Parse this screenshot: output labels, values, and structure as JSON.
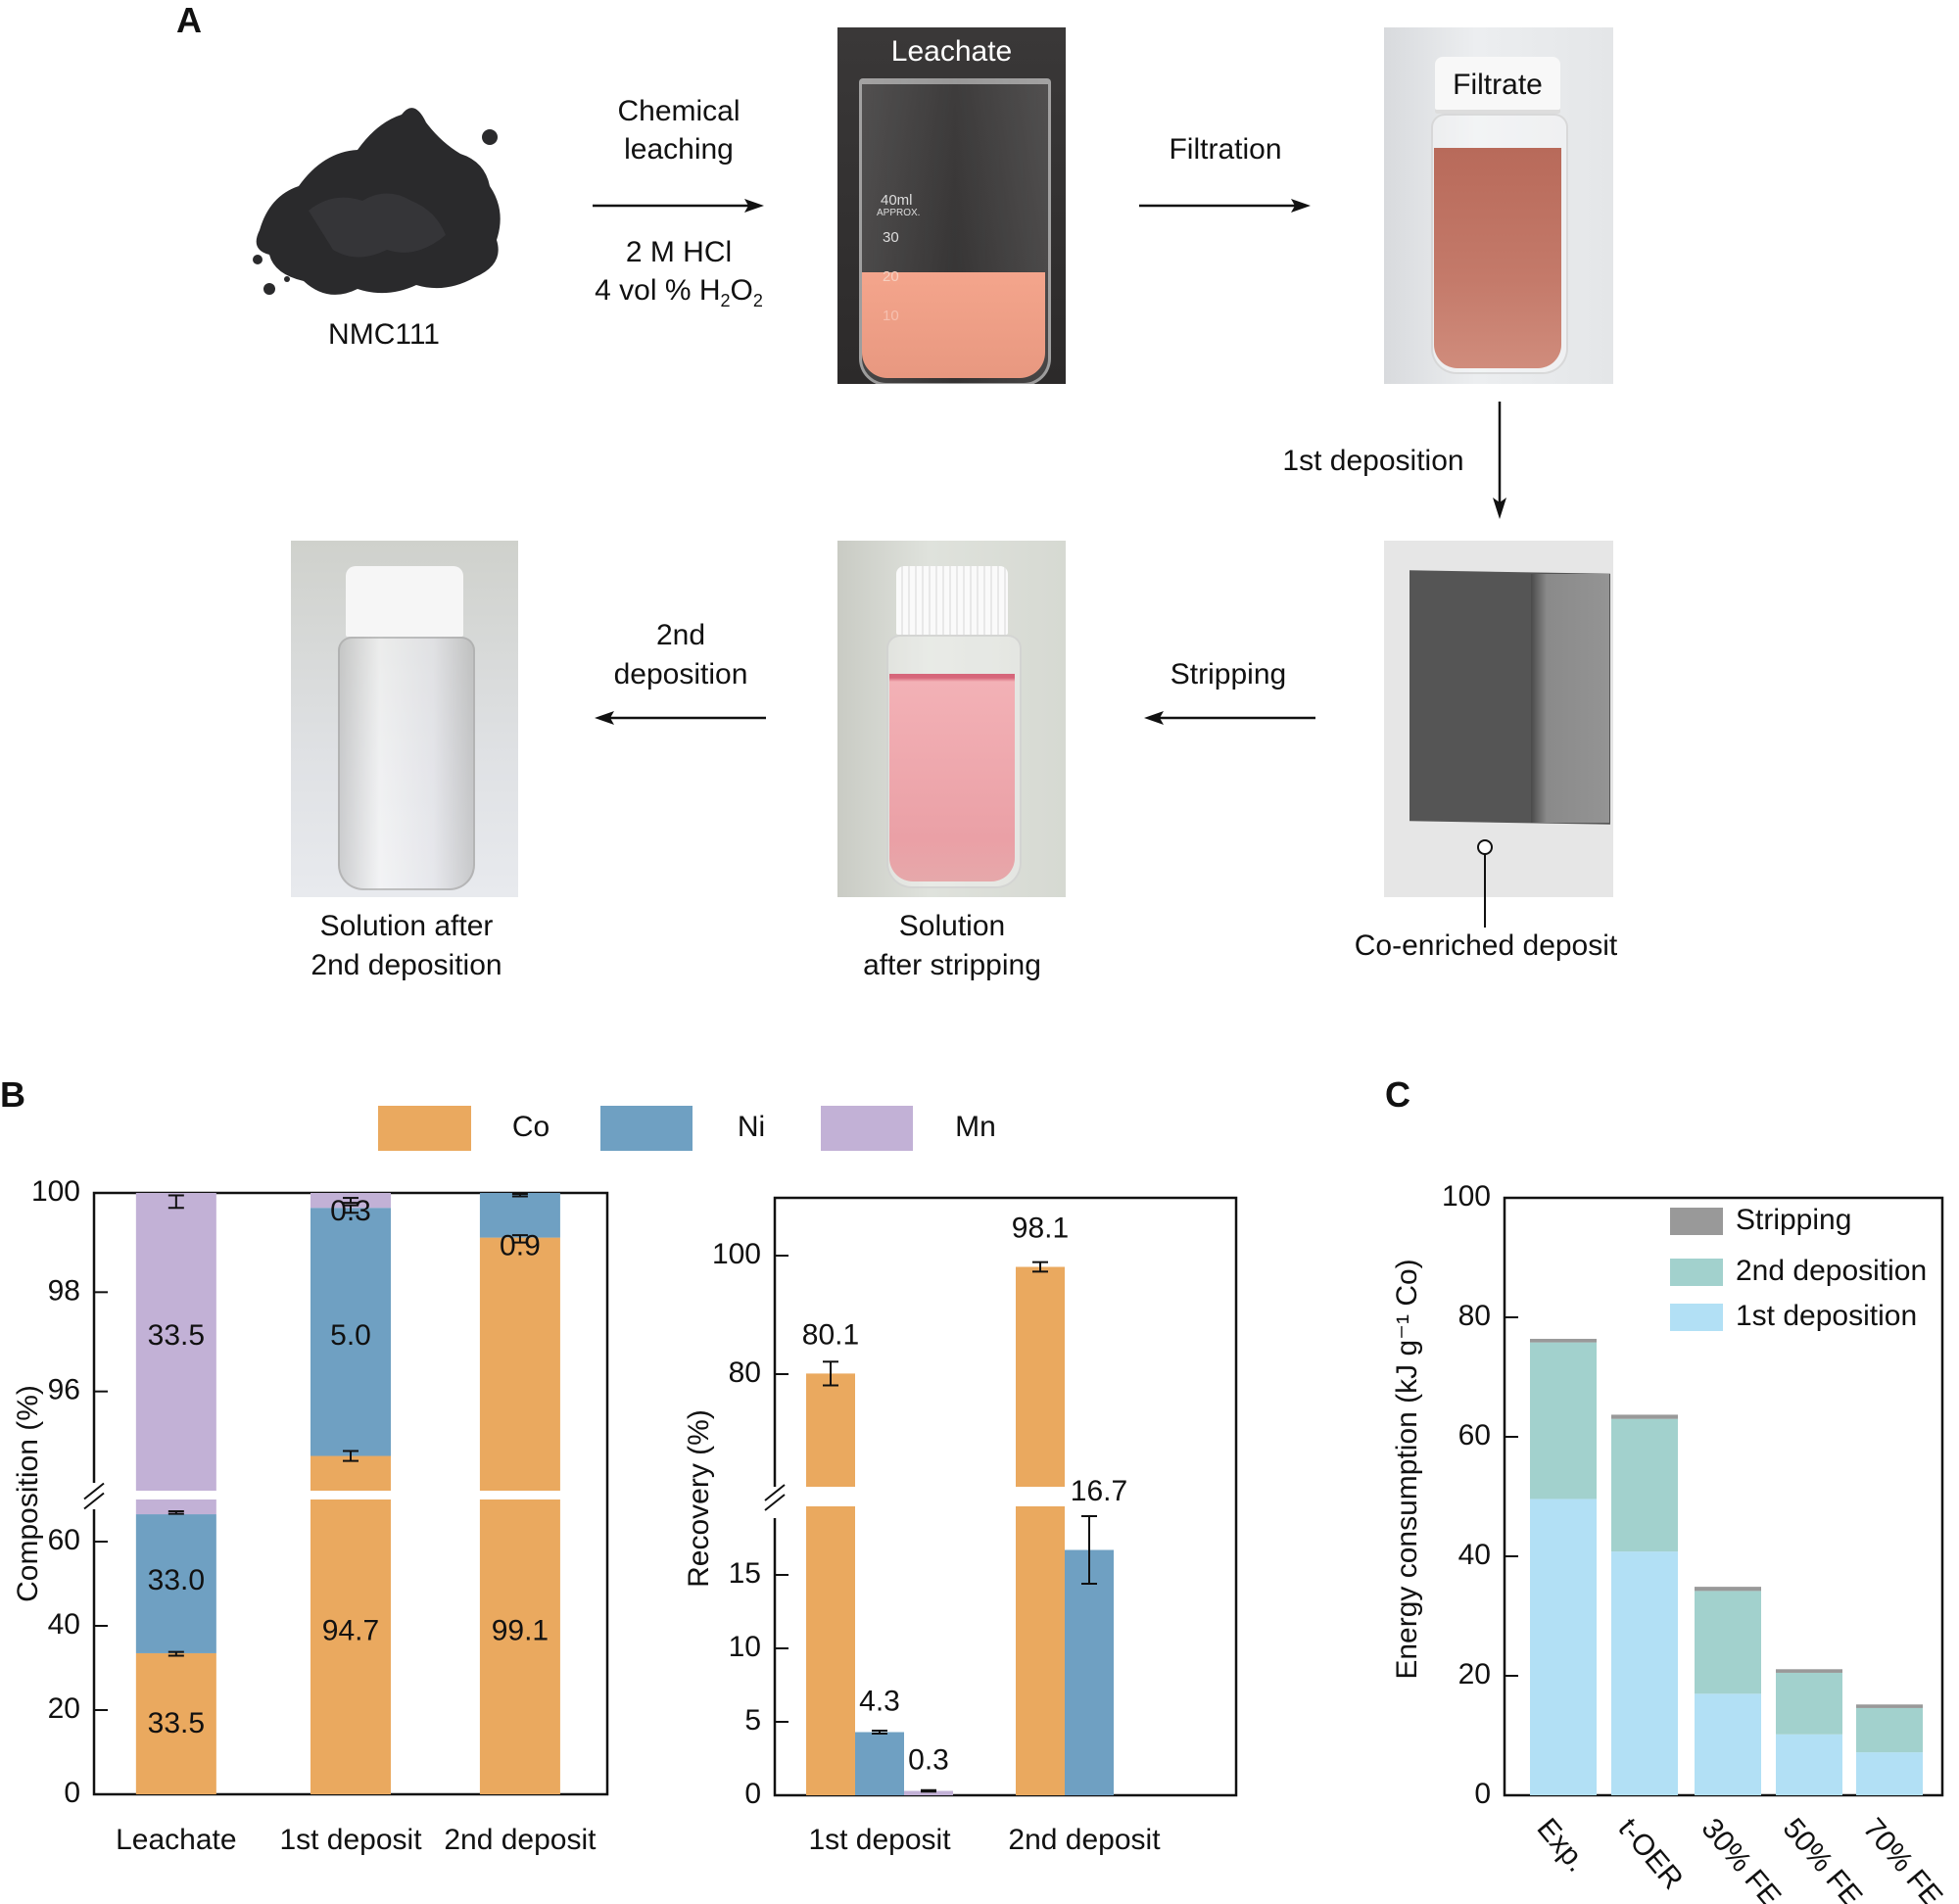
{
  "panels": {
    "a": "A",
    "b": "B",
    "c": "C"
  },
  "process": {
    "nmc": {
      "label": "NMC111"
    },
    "step1": {
      "line1": "Chemical",
      "line2": "leaching",
      "cond1": "2 M HCl",
      "cond2_prefix": "4 vol % H",
      "cond2_sub1": "2",
      "cond2_mid": "O",
      "cond2_sub2": "2"
    },
    "leachate": {
      "label": "Leachate",
      "marks": [
        "40ml",
        "APPROX.",
        "30",
        "20",
        "10"
      ]
    },
    "step2": {
      "label": "Filtration"
    },
    "filtrate": {
      "label": "Filtrate"
    },
    "step3": {
      "label": "1st deposition"
    },
    "deposit": {
      "label": "Co-enriched deposit"
    },
    "step4": {
      "label": "Stripping"
    },
    "after_strip": {
      "line1": "Solution",
      "line2": "after stripping"
    },
    "step5": {
      "line1": "2nd",
      "line2": "deposition"
    },
    "after_second": {
      "line1": "Solution after",
      "line2": "2nd deposition"
    }
  },
  "colors": {
    "co": "#EAA95F",
    "ni": "#6FA0C2",
    "mn": "#C2B1D6",
    "stripping": "#999999",
    "dep2": "#A2D1CD",
    "dep1": "#B2E0F5"
  },
  "chart_data": [
    {
      "type": "bar",
      "stacked": true,
      "title": "",
      "ylabel": "Composition (%)",
      "xlabel": "",
      "categories": [
        "Leachate",
        "1st deposit",
        "2nd deposit"
      ],
      "y_break": {
        "lower": [
          0,
          70
        ],
        "upper": [
          94,
          100
        ]
      },
      "yticks_lower": [
        "0",
        "20",
        "40",
        "60"
      ],
      "yticks_upper": [
        "96",
        "98",
        "100"
      ],
      "legend": [
        "Co",
        "Ni",
        "Mn"
      ],
      "legend_position": "top",
      "series": [
        {
          "name": "Co",
          "values": [
            33.5,
            94.7,
            99.1
          ],
          "labels": [
            "33.5",
            "94.7",
            "99.1"
          ]
        },
        {
          "name": "Ni",
          "values": [
            33.0,
            5.0,
            0.9
          ],
          "labels": [
            "33.0",
            "5.0",
            "0.9"
          ]
        },
        {
          "name": "Mn",
          "values": [
            33.5,
            0.3,
            0.0
          ],
          "labels": [
            "33.5",
            "0.3",
            ""
          ]
        }
      ]
    },
    {
      "type": "bar",
      "stacked": false,
      "title": "",
      "ylabel": "Recovery (%)",
      "xlabel": "",
      "categories": [
        "1st deposit",
        "2nd deposit"
      ],
      "y_break": {
        "lower": [
          0,
          20
        ],
        "upper": [
          66,
          110
        ]
      },
      "yticks_lower": [
        "0",
        "5",
        "10",
        "15"
      ],
      "yticks_upper": [
        "80",
        "100"
      ],
      "series": [
        {
          "name": "Co",
          "values": [
            80.1,
            98.1
          ],
          "errors": [
            2.0,
            0.8
          ],
          "labels": [
            "80.1",
            "98.1"
          ]
        },
        {
          "name": "Ni",
          "values": [
            4.3,
            16.7
          ],
          "errors": [
            0.1,
            2.3
          ],
          "labels": [
            "4.3",
            "16.7"
          ]
        },
        {
          "name": "Mn",
          "values": [
            0.3,
            null
          ],
          "errors": [
            0.05,
            null
          ],
          "labels": [
            "0.3",
            ""
          ]
        }
      ]
    },
    {
      "type": "bar",
      "stacked": true,
      "title": "",
      "ylabel": "Energy consumption  (kJ g⁻¹ Co)",
      "xlabel": "",
      "categories": [
        "Exp.",
        "t-OER",
        "30% FE",
        "50% FE",
        "70% FE"
      ],
      "ylim": [
        0,
        100
      ],
      "yticks": [
        "0",
        "20",
        "40",
        "60",
        "80",
        "100"
      ],
      "legend": [
        "Stripping",
        "2nd deposition",
        "1st deposition"
      ],
      "legend_position": "top-right",
      "series": [
        {
          "name": "1st deposition",
          "values": [
            49.6,
            40.8,
            17.0,
            10.2,
            7.2
          ]
        },
        {
          "name": "2nd deposition",
          "values": [
            26.2,
            22.2,
            17.2,
            10.3,
            7.4
          ]
        },
        {
          "name": "Stripping",
          "values": [
            0.6,
            0.7,
            0.7,
            0.6,
            0.6
          ]
        }
      ]
    }
  ]
}
